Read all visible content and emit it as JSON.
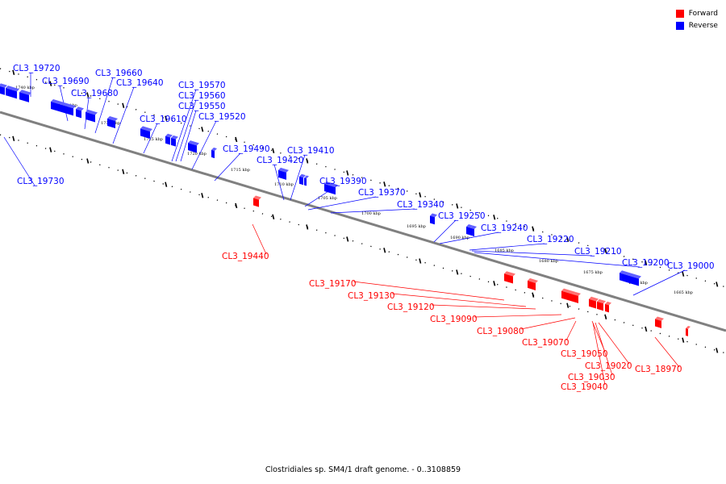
{
  "legend": [
    {
      "label": "Forward",
      "color": "#ff0000"
    },
    {
      "label": "Reverse",
      "color": "#0000ff"
    }
  ],
  "caption": "Clostridiales sp. SM4/1 draft genome. - 0..3108859",
  "kbp_ticks": [
    "1740 kbp",
    "1735 kbp",
    "1730 kbp",
    "1725 kbp",
    "1720 kbp",
    "1715 kbp",
    "1710 kbp",
    "1705 kbp",
    "1700 kbp",
    "1695 kbp",
    "1690 kbp",
    "1685 kbp",
    "1680 kbp",
    "1675 kbp",
    "1670 kbp",
    "1665 kbp"
  ],
  "genes_reverse": [
    "CL3_19720",
    "CL3_19690",
    "CL3_19680",
    "CL3_19660",
    "CL3_19640",
    "CL3_19610",
    "CL3_19570",
    "CL3_19560",
    "CL3_19550",
    "CL3_19520",
    "CL3_19490",
    "CL3_19410",
    "CL3_19420",
    "CL3_19390",
    "CL3_19370",
    "CL3_19340",
    "CL3_19250",
    "CL3_19240",
    "CL3_19220",
    "CL3_19210",
    "CL3_19200",
    "CL3_19000",
    "CL3_19730"
  ],
  "genes_forward": [
    "CL3_19440",
    "CL3_19170",
    "CL3_19130",
    "CL3_19120",
    "CL3_19090",
    "CL3_19080",
    "CL3_19070",
    "CL3_19050",
    "CL3_19020",
    "CL3_19030",
    "CL3_19040",
    "CL3_18970"
  ],
  "colors": {
    "forward": "#ff0000",
    "reverse": "#0000ff",
    "backbone": "#808080"
  }
}
